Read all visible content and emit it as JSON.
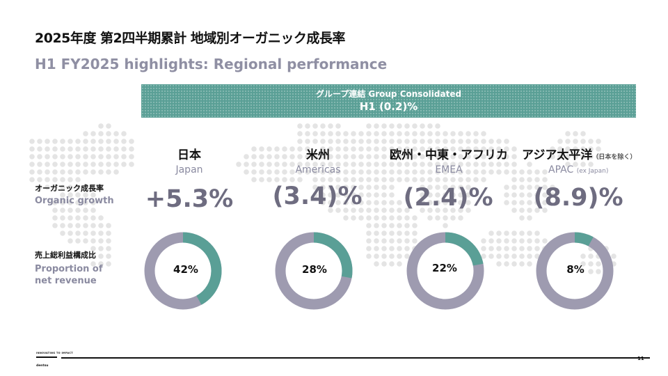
{
  "header": {
    "title_jp": "2025年度 第2四半期累計 地域別オーガニック成長率",
    "title_en": "H1 FY2025 highlights: Regional performance"
  },
  "banner": {
    "line1": "グループ連結  Group Consolidated",
    "line2": "H1 (0.2)%"
  },
  "row_labels": {
    "growth_jp": "オーガニック成長率",
    "growth_en": "Organic growth",
    "revenue_jp": "売上総利益構成比",
    "revenue_en": "Proportion of net revenue"
  },
  "regions": [
    {
      "name_jp": "日本",
      "name_en": "Japan",
      "note_jp": "",
      "note_en": "",
      "growth": "+5.3%",
      "share": 42,
      "share_label": "42%"
    },
    {
      "name_jp": "米州",
      "name_en": "Americas",
      "note_jp": "",
      "note_en": "",
      "growth": "(3.4)%",
      "share": 28,
      "share_label": "28%"
    },
    {
      "name_jp": "欧州・中東・アフリカ",
      "name_en": "EMEA",
      "note_jp": "",
      "note_en": "",
      "growth": "(2.4)%",
      "share": 22,
      "share_label": "22%"
    },
    {
      "name_jp": "アジア太平洋",
      "name_en": "APAC",
      "note_jp": "（日本を除く）",
      "note_en": "(ex Japan)",
      "growth": "(8.9)%",
      "share": 8,
      "share_label": "8%"
    }
  ],
  "footer": {
    "logo_top": "INNOVATING TO IMPACT",
    "logo_name": "dentsu",
    "page_number": "11"
  },
  "colors": {
    "teal": "#5a9f96",
    "ring_grey": "#9e9bb0",
    "growth_grey": "#6e6c80",
    "map_dot": "#e4e4e4"
  }
}
